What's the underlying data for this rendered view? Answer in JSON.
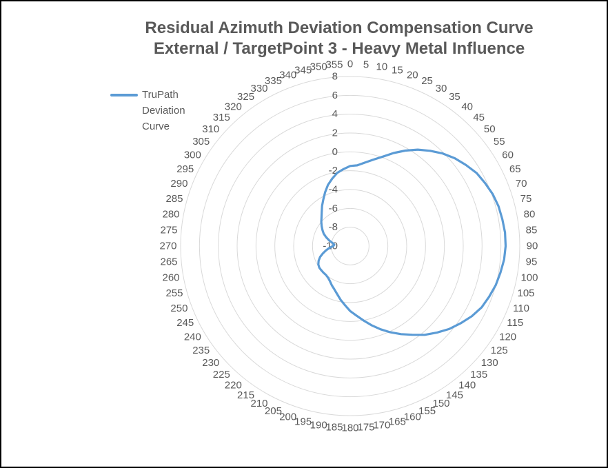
{
  "chart_data": {
    "type": "radar",
    "title": [
      "Residual Azimuth  Deviation Compensation  Curve",
      "External / TargetPoint 3 - Heavy Metal Influence"
    ],
    "categories": [
      "0",
      "5",
      "10",
      "15",
      "20",
      "25",
      "30",
      "35",
      "40",
      "45",
      "50",
      "55",
      "60",
      "65",
      "70",
      "75",
      "80",
      "85",
      "90",
      "95",
      "100",
      "105",
      "110",
      "115",
      "120",
      "125",
      "130",
      "135",
      "140",
      "145",
      "150",
      "155",
      "160",
      "165",
      "170",
      "175",
      "180",
      "185",
      "190",
      "195",
      "200",
      "205",
      "210",
      "215",
      "220",
      "225",
      "230",
      "235",
      "240",
      "245",
      "250",
      "255",
      "260",
      "265",
      "270",
      "275",
      "280",
      "285",
      "290",
      "295",
      "300",
      "305",
      "310",
      "315",
      "320",
      "325",
      "330",
      "335",
      "340",
      "345",
      "350",
      "355"
    ],
    "radial_ticks": [
      "-10",
      "-8",
      "-6",
      "-4",
      "-2",
      "0",
      "2",
      "4",
      "6",
      "8"
    ],
    "r_range": [
      -10,
      8
    ],
    "series": [
      {
        "name": "TruPath Deviation Curve",
        "color": "#5B9BD5",
        "values": [
          -1.5,
          -1.4,
          -1.0,
          -0.5,
          0.1,
          0.9,
          1.7,
          2.5,
          3.2,
          3.9,
          4.5,
          5.0,
          5.5,
          5.8,
          6.1,
          6.3,
          6.4,
          6.5,
          6.5,
          6.4,
          6.2,
          6.0,
          5.7,
          5.4,
          4.9,
          4.3,
          3.7,
          3.0,
          2.3,
          1.5,
          0.8,
          0.1,
          -0.6,
          -1.3,
          -2.0,
          -2.6,
          -3.1,
          -3.7,
          -4.2,
          -4.7,
          -5.1,
          -5.4,
          -5.7,
          -5.9,
          -6.0,
          -6.0,
          -6.0,
          -6.0,
          -6.1,
          -6.3,
          -6.6,
          -7.0,
          -7.4,
          -7.8,
          -8.2,
          -8.3,
          -8.1,
          -7.7,
          -7.3,
          -6.9,
          -6.6,
          -6.3,
          -6.0,
          -5.7,
          -5.3,
          -4.8,
          -4.3,
          -3.7,
          -3.1,
          -2.6,
          -2.1,
          -1.8
        ]
      }
    ]
  },
  "colors": {
    "grid": "#D9D9D9",
    "text": "#595959",
    "frame": "#000000"
  }
}
